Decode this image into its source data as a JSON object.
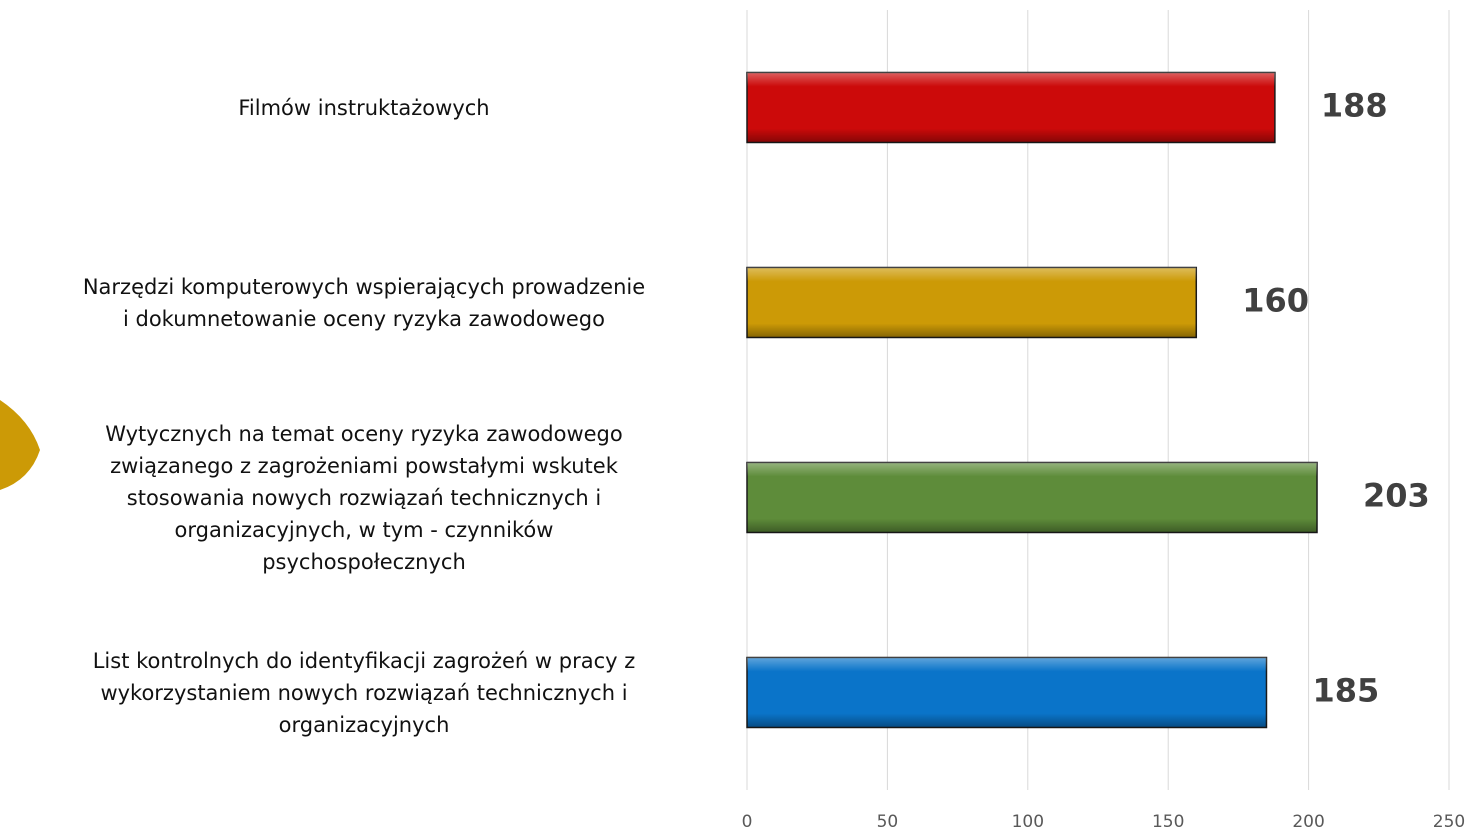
{
  "chart_data": {
    "type": "barh",
    "categories": [
      "Filmów instruktażowych",
      "Narzędzi komputerowych wspierających prowadzenie\ni dokumnetowanie oceny ryzyka zawodowego",
      "Wytycznych na temat oceny ryzyka zawodowego\nzwiązanego z zagrożeniami powstałymi wskutek\nstosowania nowych rozwiązań technicznych i\norganizacyjnych, w tym - czynników\npsychospołecznych",
      "List kontrolnych do identyfikacji zagrożeń w pracy z\nwykorzystaniem nowych rozwiązań technicznych i\norganizacyjnych"
    ],
    "values": [
      188,
      160,
      203,
      185
    ],
    "colors": [
      "#cc0a0a",
      "#cc9a06",
      "#5e8c3a",
      "#0a74c9"
    ],
    "xlim": [
      0,
      250
    ],
    "xticks": [
      0,
      50,
      100,
      150,
      200,
      250
    ],
    "grid": true
  }
}
